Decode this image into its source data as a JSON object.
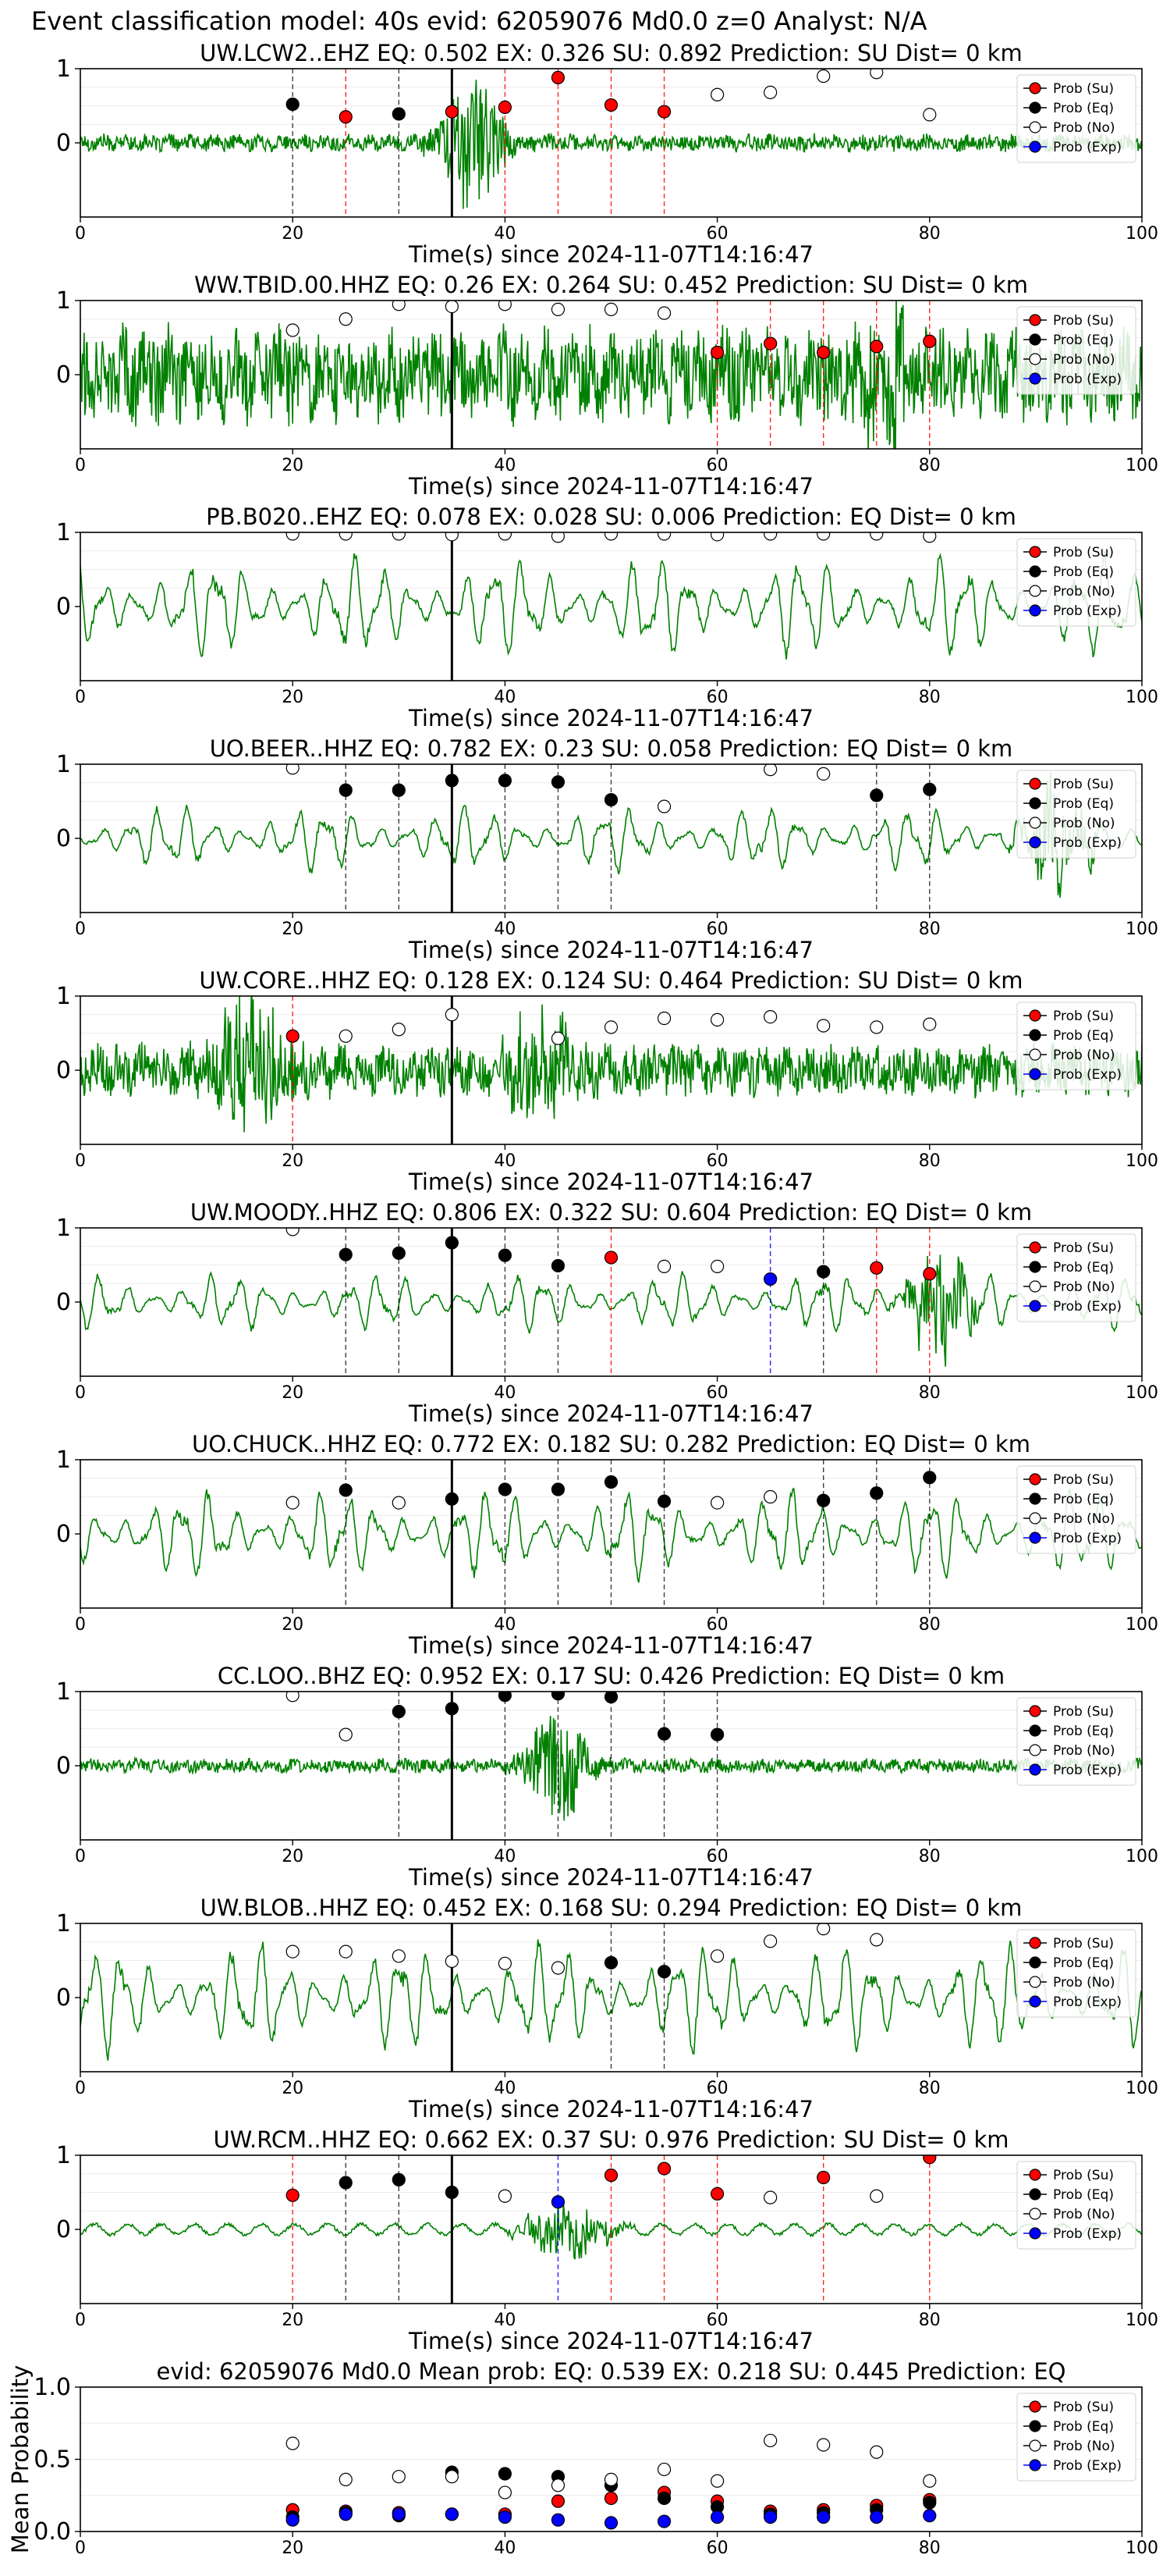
{
  "figure": {
    "suptitle": "Event classification model: 40s evid: 62059076 Md0.0 z=0 Analyst: N/A",
    "xlabel": "Time(s) since 2024-11-07T14:16:47",
    "legend": [
      "Prob (Su)",
      "Prob (Eq)",
      "Prob (No)",
      "Prob (Exp)"
    ],
    "colors": {
      "waveform": "#008000",
      "su": "#ff0000",
      "eq": "#000000",
      "no": "#ffffff",
      "exp": "#0000ff",
      "pick_line": "#000000",
      "su_line": "#ff0000",
      "eq_line": "#000000",
      "exp_line": "#0000ff"
    },
    "x_ticks": [
      "0",
      "20",
      "40",
      "60",
      "80",
      "100"
    ],
    "y_ticks": [
      "1",
      "0"
    ],
    "mean_ylabel": "Mean Probability",
    "mean_y_ticks": [
      "1.0",
      "0.5",
      "0.0"
    ]
  },
  "chart_data": [
    {
      "type": "line",
      "station": "UW.LCW2..EHZ",
      "title": "UW.LCW2..EHZ   EQ: 0.502  EX: 0.326  SU: 0.892   Prediction: SU    Dist= 0 km",
      "xlim": [
        0,
        100
      ],
      "ylim": [
        -1,
        1
      ],
      "pick_time": 35,
      "waveform": {
        "style": "noisy",
        "amplitude": 0.1,
        "bursts": [
          {
            "t": 37,
            "width": 3,
            "amp": 0.9
          }
        ]
      },
      "points": [
        {
          "x": 20,
          "y": 0.52,
          "cls": "eq"
        },
        {
          "x": 25,
          "y": 0.35,
          "cls": "su"
        },
        {
          "x": 30,
          "y": 0.39,
          "cls": "eq"
        },
        {
          "x": 35,
          "y": 0.42,
          "cls": "su"
        },
        {
          "x": 40,
          "y": 0.48,
          "cls": "su"
        },
        {
          "x": 45,
          "y": 0.88,
          "cls": "su"
        },
        {
          "x": 50,
          "y": 0.51,
          "cls": "su"
        },
        {
          "x": 55,
          "y": 0.42,
          "cls": "su"
        },
        {
          "x": 60,
          "y": 0.65,
          "cls": "no"
        },
        {
          "x": 65,
          "y": 0.68,
          "cls": "no"
        },
        {
          "x": 70,
          "y": 0.9,
          "cls": "no"
        },
        {
          "x": 75,
          "y": 0.95,
          "cls": "no"
        },
        {
          "x": 80,
          "y": 0.38,
          "cls": "no"
        }
      ]
    },
    {
      "type": "line",
      "station": "WW.TBID.00.HHZ",
      "title": "WW.TBID.00.HHZ   EQ: 0.26  EX: 0.264  SU: 0.452   Prediction: SU    Dist= 0 km",
      "xlim": [
        0,
        100
      ],
      "ylim": [
        -1,
        1
      ],
      "pick_time": 35,
      "waveform": {
        "style": "noisy",
        "amplitude": 0.55,
        "bursts": [
          {
            "t": 76,
            "width": 4,
            "amp": 0.7
          }
        ]
      },
      "points": [
        {
          "x": 20,
          "y": 0.6,
          "cls": "no"
        },
        {
          "x": 25,
          "y": 0.75,
          "cls": "no"
        },
        {
          "x": 30,
          "y": 0.95,
          "cls": "no"
        },
        {
          "x": 35,
          "y": 0.92,
          "cls": "no"
        },
        {
          "x": 40,
          "y": 0.95,
          "cls": "no"
        },
        {
          "x": 45,
          "y": 0.88,
          "cls": "no"
        },
        {
          "x": 50,
          "y": 0.88,
          "cls": "no"
        },
        {
          "x": 55,
          "y": 0.83,
          "cls": "no"
        },
        {
          "x": 60,
          "y": 0.3,
          "cls": "su"
        },
        {
          "x": 65,
          "y": 0.42,
          "cls": "su"
        },
        {
          "x": 70,
          "y": 0.3,
          "cls": "su"
        },
        {
          "x": 75,
          "y": 0.38,
          "cls": "su"
        },
        {
          "x": 80,
          "y": 0.45,
          "cls": "su"
        }
      ]
    },
    {
      "type": "line",
      "station": "PB.B020..EHZ",
      "title": "PB.B020..EHZ   EQ: 0.078  EX: 0.028  SU: 0.006   Prediction: EQ    Dist= 0 km",
      "xlim": [
        0,
        100
      ],
      "ylim": [
        -1,
        1
      ],
      "pick_time": 35,
      "waveform": {
        "style": "oscillating",
        "amplitude": 0.7,
        "bursts": []
      },
      "points": [
        {
          "x": 20,
          "y": 0.98,
          "cls": "no"
        },
        {
          "x": 25,
          "y": 0.98,
          "cls": "no"
        },
        {
          "x": 30,
          "y": 0.98,
          "cls": "no"
        },
        {
          "x": 35,
          "y": 0.97,
          "cls": "no"
        },
        {
          "x": 40,
          "y": 0.98,
          "cls": "no"
        },
        {
          "x": 45,
          "y": 0.95,
          "cls": "no"
        },
        {
          "x": 50,
          "y": 0.98,
          "cls": "no"
        },
        {
          "x": 55,
          "y": 0.98,
          "cls": "no"
        },
        {
          "x": 60,
          "y": 0.97,
          "cls": "no"
        },
        {
          "x": 65,
          "y": 0.98,
          "cls": "no"
        },
        {
          "x": 70,
          "y": 0.98,
          "cls": "no"
        },
        {
          "x": 75,
          "y": 0.98,
          "cls": "no"
        },
        {
          "x": 80,
          "y": 0.95,
          "cls": "no"
        }
      ]
    },
    {
      "type": "line",
      "station": "UO.BEER..HHZ",
      "title": "UO.BEER..HHZ   EQ: 0.782  EX: 0.23  SU: 0.058   Prediction: EQ    Dist= 0 km",
      "xlim": [
        0,
        100
      ],
      "ylim": [
        -1,
        1
      ],
      "pick_time": 35,
      "waveform": {
        "style": "oscillating",
        "amplitude": 0.45,
        "bursts": [
          {
            "t": 92,
            "width": 3,
            "amp": 0.6
          }
        ]
      },
      "points": [
        {
          "x": 20,
          "y": 0.95,
          "cls": "no"
        },
        {
          "x": 25,
          "y": 0.65,
          "cls": "eq"
        },
        {
          "x": 30,
          "y": 0.65,
          "cls": "eq"
        },
        {
          "x": 35,
          "y": 0.78,
          "cls": "eq"
        },
        {
          "x": 40,
          "y": 0.78,
          "cls": "eq"
        },
        {
          "x": 45,
          "y": 0.76,
          "cls": "eq"
        },
        {
          "x": 50,
          "y": 0.52,
          "cls": "eq"
        },
        {
          "x": 55,
          "y": 0.43,
          "cls": "no"
        },
        {
          "x": 65,
          "y": 0.93,
          "cls": "no"
        },
        {
          "x": 70,
          "y": 0.87,
          "cls": "no"
        },
        {
          "x": 75,
          "y": 0.58,
          "cls": "eq"
        },
        {
          "x": 80,
          "y": 0.66,
          "cls": "eq"
        }
      ]
    },
    {
      "type": "line",
      "station": "UW.CORE..HHZ",
      "title": "UW.CORE..HHZ   EQ: 0.128  EX: 0.124  SU: 0.464   Prediction: SU    Dist= 0 km",
      "xlim": [
        0,
        100
      ],
      "ylim": [
        -1,
        1
      ],
      "pick_time": 35,
      "waveform": {
        "style": "noisy",
        "amplitude": 0.3,
        "bursts": [
          {
            "t": 16,
            "width": 4,
            "amp": 0.9
          },
          {
            "t": 43,
            "width": 4,
            "amp": 0.6
          }
        ]
      },
      "points": [
        {
          "x": 20,
          "y": 0.46,
          "cls": "su"
        },
        {
          "x": 25,
          "y": 0.46,
          "cls": "no"
        },
        {
          "x": 30,
          "y": 0.55,
          "cls": "no"
        },
        {
          "x": 35,
          "y": 0.75,
          "cls": "no"
        },
        {
          "x": 45,
          "y": 0.43,
          "cls": "no"
        },
        {
          "x": 50,
          "y": 0.58,
          "cls": "no"
        },
        {
          "x": 55,
          "y": 0.7,
          "cls": "no"
        },
        {
          "x": 60,
          "y": 0.68,
          "cls": "no"
        },
        {
          "x": 65,
          "y": 0.72,
          "cls": "no"
        },
        {
          "x": 70,
          "y": 0.6,
          "cls": "no"
        },
        {
          "x": 75,
          "y": 0.58,
          "cls": "no"
        },
        {
          "x": 80,
          "y": 0.62,
          "cls": "no"
        }
      ]
    },
    {
      "type": "line",
      "station": "UW.MOODY..HHZ",
      "title": "UW.MOODY..HHZ   EQ: 0.806  EX: 0.322  SU: 0.604   Prediction: EQ    Dist= 0 km",
      "xlim": [
        0,
        100
      ],
      "ylim": [
        -1,
        1
      ],
      "pick_time": 35,
      "waveform": {
        "style": "oscillating",
        "amplitude": 0.4,
        "bursts": [
          {
            "t": 81,
            "width": 3,
            "amp": 0.8
          }
        ]
      },
      "points": [
        {
          "x": 20,
          "y": 0.98,
          "cls": "no"
        },
        {
          "x": 25,
          "y": 0.64,
          "cls": "eq"
        },
        {
          "x": 30,
          "y": 0.66,
          "cls": "eq"
        },
        {
          "x": 35,
          "y": 0.8,
          "cls": "eq"
        },
        {
          "x": 40,
          "y": 0.63,
          "cls": "eq"
        },
        {
          "x": 45,
          "y": 0.49,
          "cls": "eq"
        },
        {
          "x": 50,
          "y": 0.6,
          "cls": "su"
        },
        {
          "x": 55,
          "y": 0.48,
          "cls": "no"
        },
        {
          "x": 60,
          "y": 0.48,
          "cls": "no"
        },
        {
          "x": 65,
          "y": 0.31,
          "cls": "exp"
        },
        {
          "x": 70,
          "y": 0.41,
          "cls": "eq"
        },
        {
          "x": 75,
          "y": 0.46,
          "cls": "su"
        },
        {
          "x": 80,
          "y": 0.38,
          "cls": "su"
        }
      ]
    },
    {
      "type": "line",
      "station": "UO.CHUCK..HHZ",
      "title": "UO.CHUCK..HHZ   EQ: 0.772  EX: 0.182  SU: 0.282   Prediction: EQ    Dist= 0 km",
      "xlim": [
        0,
        100
      ],
      "ylim": [
        -1,
        1
      ],
      "pick_time": 35,
      "waveform": {
        "style": "oscillating",
        "amplitude": 0.6,
        "bursts": []
      },
      "points": [
        {
          "x": 20,
          "y": 0.42,
          "cls": "no"
        },
        {
          "x": 25,
          "y": 0.59,
          "cls": "eq"
        },
        {
          "x": 30,
          "y": 0.42,
          "cls": "no"
        },
        {
          "x": 35,
          "y": 0.47,
          "cls": "eq"
        },
        {
          "x": 40,
          "y": 0.6,
          "cls": "eq"
        },
        {
          "x": 45,
          "y": 0.6,
          "cls": "eq"
        },
        {
          "x": 50,
          "y": 0.7,
          "cls": "eq"
        },
        {
          "x": 55,
          "y": 0.44,
          "cls": "eq"
        },
        {
          "x": 60,
          "y": 0.42,
          "cls": "no"
        },
        {
          "x": 65,
          "y": 0.5,
          "cls": "no"
        },
        {
          "x": 70,
          "y": 0.45,
          "cls": "eq"
        },
        {
          "x": 75,
          "y": 0.55,
          "cls": "eq"
        },
        {
          "x": 80,
          "y": 0.76,
          "cls": "eq"
        }
      ]
    },
    {
      "type": "line",
      "station": "CC.LOO..BHZ",
      "title": "CC.LOO..BHZ   EQ: 0.952  EX: 0.17  SU: 0.426   Prediction: EQ    Dist= 0 km",
      "xlim": [
        0,
        100
      ],
      "ylim": [
        -1,
        1
      ],
      "pick_time": 35,
      "waveform": {
        "style": "noisy",
        "amplitude": 0.08,
        "bursts": [
          {
            "t": 45,
            "width": 3,
            "amp": 0.75
          }
        ]
      },
      "points": [
        {
          "x": 20,
          "y": 0.95,
          "cls": "no"
        },
        {
          "x": 25,
          "y": 0.42,
          "cls": "no"
        },
        {
          "x": 30,
          "y": 0.73,
          "cls": "eq"
        },
        {
          "x": 35,
          "y": 0.77,
          "cls": "eq"
        },
        {
          "x": 40,
          "y": 0.95,
          "cls": "eq"
        },
        {
          "x": 45,
          "y": 0.97,
          "cls": "eq"
        },
        {
          "x": 50,
          "y": 0.93,
          "cls": "eq"
        },
        {
          "x": 55,
          "y": 0.43,
          "cls": "eq"
        },
        {
          "x": 60,
          "y": 0.42,
          "cls": "eq"
        }
      ]
    },
    {
      "type": "line",
      "station": "UW.BLOB..HHZ",
      "title": "UW.BLOB..HHZ   EQ: 0.452  EX: 0.168  SU: 0.294   Prediction: EQ    Dist= 0 km",
      "xlim": [
        0,
        100
      ],
      "ylim": [
        -1,
        1
      ],
      "pick_time": 35,
      "waveform": {
        "style": "oscillating",
        "amplitude": 0.75,
        "bursts": []
      },
      "points": [
        {
          "x": 20,
          "y": 0.62,
          "cls": "no"
        },
        {
          "x": 25,
          "y": 0.62,
          "cls": "no"
        },
        {
          "x": 30,
          "y": 0.56,
          "cls": "no"
        },
        {
          "x": 35,
          "y": 0.49,
          "cls": "no"
        },
        {
          "x": 40,
          "y": 0.46,
          "cls": "no"
        },
        {
          "x": 45,
          "y": 0.4,
          "cls": "no"
        },
        {
          "x": 50,
          "y": 0.47,
          "cls": "eq"
        },
        {
          "x": 55,
          "y": 0.35,
          "cls": "eq"
        },
        {
          "x": 60,
          "y": 0.56,
          "cls": "no"
        },
        {
          "x": 65,
          "y": 0.76,
          "cls": "no"
        },
        {
          "x": 70,
          "y": 0.93,
          "cls": "no"
        },
        {
          "x": 75,
          "y": 0.78,
          "cls": "no"
        }
      ]
    },
    {
      "type": "line",
      "station": "UW.RCM..HHZ",
      "title": "UW.RCM..HHZ   EQ: 0.662  EX: 0.37  SU: 0.976   Prediction: SU    Dist= 0 km",
      "xlim": [
        0,
        100
      ],
      "ylim": [
        -1,
        1
      ],
      "pick_time": 35,
      "waveform": {
        "style": "quiet",
        "amplitude": 0.07,
        "bursts": [
          {
            "t": 46,
            "width": 4,
            "amp": 0.4
          }
        ]
      },
      "points": [
        {
          "x": 20,
          "y": 0.46,
          "cls": "su"
        },
        {
          "x": 25,
          "y": 0.63,
          "cls": "eq"
        },
        {
          "x": 30,
          "y": 0.67,
          "cls": "eq"
        },
        {
          "x": 35,
          "y": 0.5,
          "cls": "eq"
        },
        {
          "x": 40,
          "y": 0.45,
          "cls": "no"
        },
        {
          "x": 45,
          "y": 0.37,
          "cls": "exp"
        },
        {
          "x": 50,
          "y": 0.73,
          "cls": "su"
        },
        {
          "x": 55,
          "y": 0.82,
          "cls": "su"
        },
        {
          "x": 60,
          "y": 0.48,
          "cls": "su"
        },
        {
          "x": 65,
          "y": 0.43,
          "cls": "no"
        },
        {
          "x": 70,
          "y": 0.7,
          "cls": "su"
        },
        {
          "x": 75,
          "y": 0.45,
          "cls": "no"
        },
        {
          "x": 80,
          "y": 0.97,
          "cls": "su"
        }
      ]
    },
    {
      "type": "scatter",
      "title": "evid: 62059076  Md0.0   Mean prob:   EQ: 0.539  EX: 0.218  SU: 0.445   Prediction: EQ",
      "ylabel": "Mean Probability",
      "xlim": [
        0,
        100
      ],
      "ylim": [
        0,
        1
      ],
      "x": [
        20,
        25,
        30,
        35,
        40,
        45,
        50,
        55,
        60,
        65,
        70,
        75,
        80
      ],
      "series": [
        {
          "name": "Prob (Su)",
          "cls": "su",
          "values": [
            0.15,
            0.14,
            0.13,
            0.12,
            0.12,
            0.21,
            0.23,
            0.27,
            0.21,
            0.14,
            0.15,
            0.18,
            0.22
          ]
        },
        {
          "name": "Prob (Eq)",
          "cls": "eq",
          "values": [
            0.1,
            0.13,
            0.11,
            0.41,
            0.4,
            0.38,
            0.32,
            0.23,
            0.17,
            0.12,
            0.13,
            0.15,
            0.2
          ]
        },
        {
          "name": "Prob (No)",
          "cls": "no",
          "values": [
            0.61,
            0.36,
            0.38,
            0.38,
            0.27,
            0.32,
            0.36,
            0.43,
            0.35,
            0.63,
            0.6,
            0.55,
            0.35
          ]
        },
        {
          "name": "Prob (Exp)",
          "cls": "exp",
          "values": [
            0.08,
            0.12,
            0.12,
            0.12,
            0.1,
            0.08,
            0.06,
            0.07,
            0.1,
            0.1,
            0.1,
            0.1,
            0.11
          ]
        }
      ]
    }
  ]
}
